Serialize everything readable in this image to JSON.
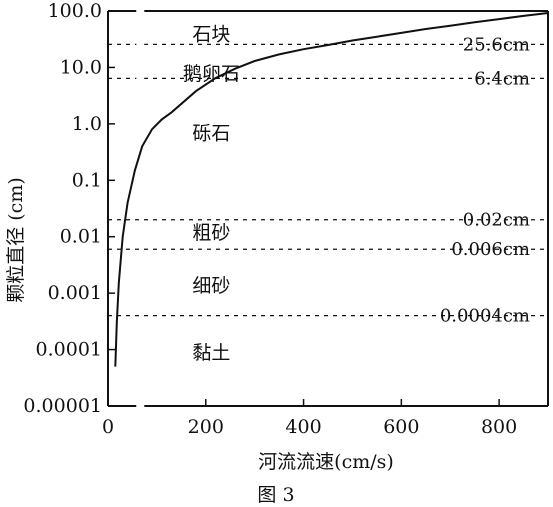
{
  "chart_data": {
    "type": "line",
    "caption": "图 3",
    "xlabel": "河流流速(cm/s)",
    "ylabel": "颗粒直径 (cm)",
    "x_scale": "linear",
    "y_scale": "log",
    "xlim": [
      0,
      900
    ],
    "ylim": [
      1e-05,
      100
    ],
    "x_ticks": [
      "0",
      "200",
      "400",
      "600",
      "800"
    ],
    "x_tick_values": [
      0,
      200,
      400,
      600,
      800
    ],
    "y_ticks": [
      "100.0",
      "10.0",
      "1.0",
      "0.1",
      "0.01",
      "0.001",
      "0.0001",
      "0.00001"
    ],
    "y_tick_values": [
      100,
      10,
      1,
      0.1,
      0.01,
      0.001,
      0.0001,
      1e-05
    ],
    "grid": false,
    "curve": {
      "x": [
        15,
        18,
        22,
        30,
        40,
        55,
        70,
        90,
        110,
        130,
        180,
        220,
        260,
        300,
        350,
        400,
        450,
        500,
        550,
        600,
        650,
        700,
        750,
        800,
        850,
        900
      ],
      "y": [
        5e-05,
        0.0003,
        0.0015,
        0.01,
        0.04,
        0.15,
        0.4,
        0.8,
        1.2,
        1.6,
        3.8,
        6.5,
        9.5,
        13,
        17,
        21,
        25,
        30,
        35,
        41,
        48,
        55,
        63,
        72,
        82,
        92
      ]
    },
    "boundaries": [
      {
        "label": "25.6cm",
        "value": 25.6
      },
      {
        "label": "6.4cm",
        "value": 6.4
      },
      {
        "label": "0.02cm",
        "value": 0.02
      },
      {
        "label": "0.006cm",
        "value": 0.006
      },
      {
        "label": "0.0004cm",
        "value": 0.0004
      }
    ],
    "zones": [
      {
        "label": "石块",
        "value": 40
      },
      {
        "label": "鹅卵石",
        "value": 8
      },
      {
        "label": "砾石",
        "value": 0.7
      },
      {
        "label": "粗砂",
        "value": 0.012
      },
      {
        "label": "细砂",
        "value": 0.0014
      },
      {
        "label": "黏土",
        "value": 9e-05
      }
    ]
  }
}
